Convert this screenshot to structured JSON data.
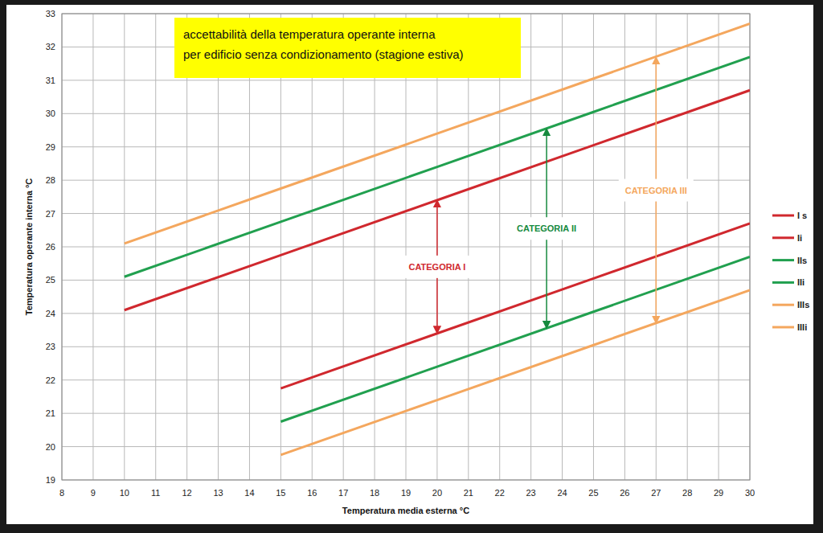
{
  "chart_data": {
    "type": "line",
    "title": "accettabilità della temperatura operante interna",
    "subtitle": "per edificio senza condizionamento (stagione estiva)",
    "x_label": "Temperatura media esterna °C",
    "y_label": "Temperatura operante interna °C",
    "x": [
      10,
      15,
      20,
      25,
      30
    ],
    "xlim": [
      8,
      30
    ],
    "ylim": [
      19,
      33
    ],
    "xticks": [
      8,
      9,
      10,
      11,
      12,
      13,
      14,
      15,
      16,
      17,
      18,
      19,
      20,
      21,
      22,
      23,
      24,
      25,
      26,
      27,
      28,
      29,
      30
    ],
    "yticks": [
      19,
      20,
      21,
      22,
      23,
      24,
      25,
      26,
      27,
      28,
      29,
      30,
      31,
      32,
      33
    ],
    "grid": true,
    "legend": "right",
    "series": [
      {
        "name": "I s",
        "color": "#d0282e",
        "values": [
          24.1,
          25.75,
          27.4,
          29.05,
          30.7
        ]
      },
      {
        "name": "Ii",
        "color": "#d0282e",
        "values": [
          null,
          21.75,
          23.4,
          25.05,
          26.7
        ]
      },
      {
        "name": "IIs",
        "color": "#21a04f",
        "values": [
          25.1,
          26.75,
          28.4,
          30.05,
          31.7
        ]
      },
      {
        "name": "IIi",
        "color": "#21a04f",
        "values": [
          null,
          20.75,
          22.4,
          24.05,
          25.7
        ]
      },
      {
        "name": "IIIs",
        "color": "#f4a75e",
        "values": [
          26.1,
          27.75,
          29.4,
          31.05,
          32.7
        ]
      },
      {
        "name": "IIIi",
        "color": "#f4a75e",
        "values": [
          null,
          19.75,
          21.4,
          23.05,
          24.7
        ]
      }
    ],
    "annotations": [
      {
        "text": "CATEGORIA I",
        "x": 20,
        "y": [
          23.4,
          27.4
        ],
        "color": "#d0282e"
      },
      {
        "text": "CATEGORIA II",
        "x": 23.5,
        "y": [
          23.55,
          29.55
        ],
        "color": "#168a3e"
      },
      {
        "text": "CATEGORIA III",
        "x": 27,
        "y": [
          23.7,
          31.7
        ],
        "color": "#f4a75e"
      }
    ]
  }
}
